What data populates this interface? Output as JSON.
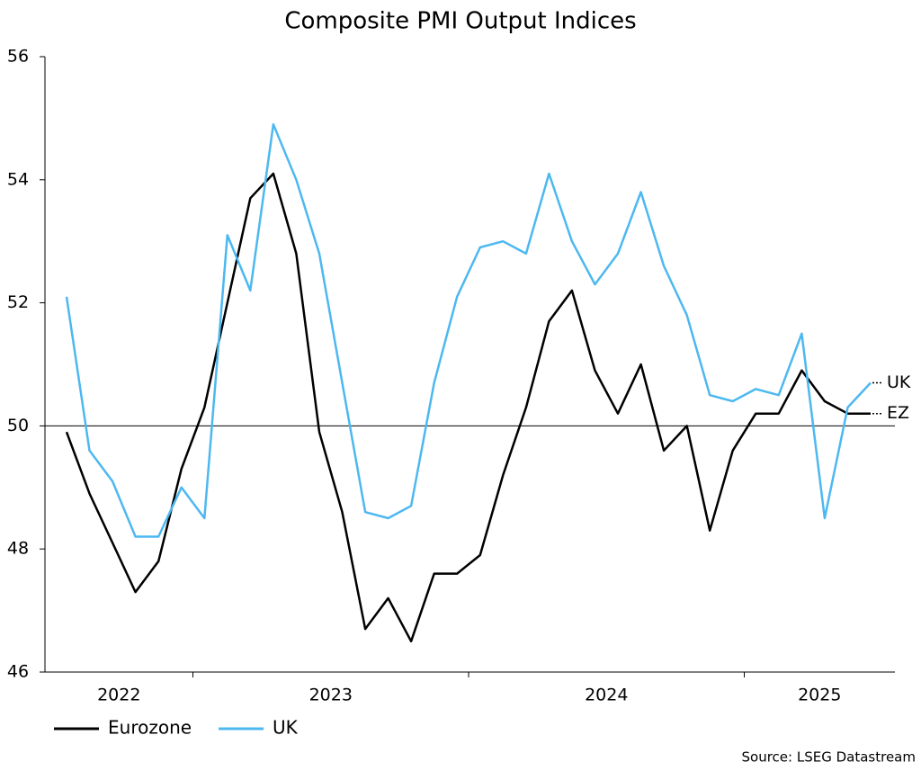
{
  "chart_data": {
    "type": "line",
    "title": "Composite PMI Output Indices",
    "source": "Source: LSEG Datastream",
    "categories": [
      "2022",
      "2022",
      "2022",
      "2022",
      "2022",
      "2022",
      "2023",
      "2023",
      "2023",
      "2023",
      "2023",
      "2023",
      "2023",
      "2023",
      "2023",
      "2023",
      "2023",
      "2023",
      "2024",
      "2024",
      "2024",
      "2024",
      "2024",
      "2024",
      "2024",
      "2024",
      "2024",
      "2024",
      "2024",
      "2024",
      "2025",
      "2025",
      "2025",
      "2025",
      "2025",
      "2025"
    ],
    "series": [
      {
        "name": "Eurozone",
        "end_label": "EZ",
        "color": "#000000",
        "values": [
          49.9,
          48.9,
          48.1,
          47.3,
          47.8,
          49.3,
          50.3,
          52.0,
          53.7,
          54.1,
          52.8,
          49.9,
          48.6,
          46.7,
          47.2,
          46.5,
          47.6,
          47.6,
          47.9,
          49.2,
          50.3,
          51.7,
          52.2,
          50.9,
          50.2,
          51.0,
          49.6,
          50.0,
          48.3,
          49.6,
          50.2,
          50.2,
          50.9,
          50.4,
          50.2,
          50.2
        ]
      },
      {
        "name": "UK",
        "end_label": "UK",
        "color": "#4db8f0",
        "values": [
          52.1,
          49.6,
          49.1,
          48.2,
          48.2,
          49.0,
          48.5,
          53.1,
          52.2,
          54.9,
          54.0,
          52.8,
          50.7,
          48.6,
          48.5,
          48.7,
          50.7,
          52.1,
          52.9,
          53.0,
          52.8,
          54.1,
          53.0,
          52.3,
          52.8,
          53.8,
          52.6,
          51.8,
          50.5,
          50.4,
          50.6,
          50.5,
          51.5,
          48.5,
          50.3,
          50.7
        ]
      }
    ],
    "ylim": [
      46,
      56
    ],
    "yticks": [
      46,
      48,
      50,
      52,
      54,
      56
    ],
    "hline": 50,
    "legend": "bottom-left"
  }
}
